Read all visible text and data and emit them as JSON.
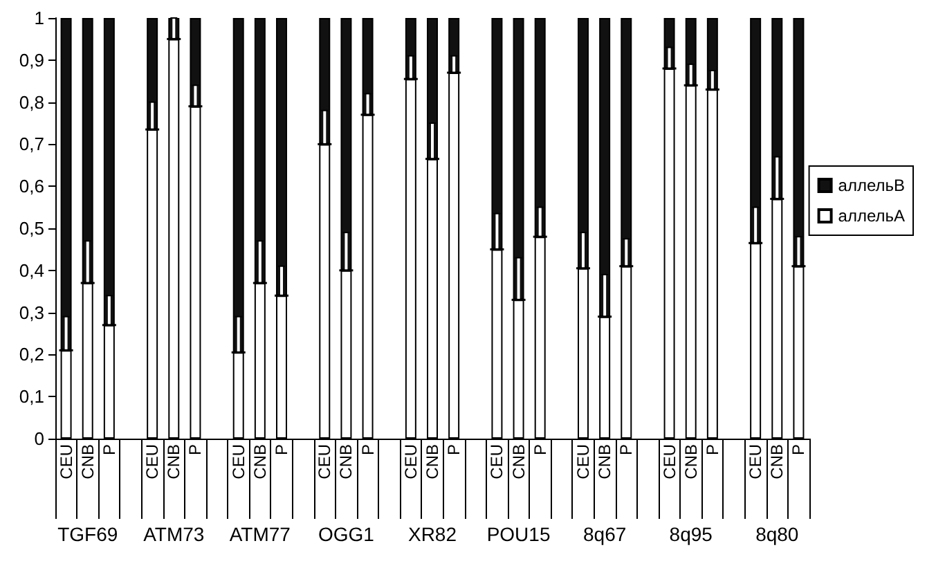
{
  "chart_data": {
    "type": "bar",
    "stacked": true,
    "categories": [
      "CEU",
      "CNB",
      "P",
      null,
      "CEU",
      "CNB",
      "P",
      null,
      "CEU",
      "CNB",
      "P",
      null,
      "CEU",
      "CNB",
      "P",
      null,
      "CEU",
      "CNB",
      "P",
      null,
      "CEU",
      "CNB",
      "P",
      null,
      "CEU",
      "CNB",
      "P",
      null,
      "CEU",
      "CNB",
      "P",
      null,
      "CEU",
      "CNB",
      "P"
    ],
    "series": [
      {
        "name": "аллельA",
        "color": "#ffffff",
        "values": [
          0.21,
          0.37,
          0.27,
          null,
          0.735,
          0.95,
          0.79,
          null,
          0.205,
          0.37,
          0.34,
          null,
          0.7,
          0.4,
          0.77,
          null,
          0.855,
          0.665,
          0.87,
          null,
          0.45,
          0.33,
          0.48,
          null,
          0.405,
          0.29,
          0.41,
          null,
          0.88,
          0.84,
          0.83,
          null,
          0.465,
          0.57,
          0.41
        ],
        "errors": [
          [
            0.21,
            0.29
          ],
          [
            0.37,
            0.47
          ],
          [
            0.27,
            0.34
          ],
          null,
          [
            0.735,
            0.8
          ],
          [
            0.95,
            1.0
          ],
          [
            0.79,
            0.84
          ],
          null,
          [
            0.205,
            0.29
          ],
          [
            0.37,
            0.47
          ],
          [
            0.34,
            0.41
          ],
          null,
          [
            0.7,
            0.78
          ],
          [
            0.4,
            0.49
          ],
          [
            0.77,
            0.82
          ],
          null,
          [
            0.855,
            0.91
          ],
          [
            0.665,
            0.75
          ],
          [
            0.87,
            0.91
          ],
          null,
          [
            0.45,
            0.535
          ],
          [
            0.33,
            0.43
          ],
          [
            0.48,
            0.55
          ],
          null,
          [
            0.405,
            0.49
          ],
          [
            0.29,
            0.39
          ],
          [
            0.41,
            0.475
          ],
          null,
          [
            0.88,
            0.93
          ],
          [
            0.84,
            0.89
          ],
          [
            0.83,
            0.875
          ],
          null,
          [
            0.465,
            0.55
          ],
          [
            0.57,
            0.67
          ],
          [
            0.41,
            0.48
          ]
        ]
      },
      {
        "name": "аллельB",
        "color": "#111111",
        "values": [
          0.79,
          0.63,
          0.73,
          null,
          0.265,
          0.05,
          0.21,
          null,
          0.795,
          0.63,
          0.66,
          null,
          0.3,
          0.6,
          0.23,
          null,
          0.145,
          0.335,
          0.13,
          null,
          0.55,
          0.67,
          0.52,
          null,
          0.595,
          0.71,
          0.59,
          null,
          0.12,
          0.16,
          0.17,
          null,
          0.535,
          0.43,
          0.59
        ]
      }
    ],
    "annotations": [
      "TGF69",
      "ATM73",
      "ATM77",
      "OGG1",
      "XR82",
      "POU15",
      "8q67",
      "8q95",
      "8q80"
    ],
    "ylim": [
      0,
      1
    ],
    "yticks": [
      {
        "value": 0,
        "label": "0"
      },
      {
        "value": 0.1,
        "label": "0,1"
      },
      {
        "value": 0.2,
        "label": "0,2"
      },
      {
        "value": 0.3,
        "label": "0,3"
      },
      {
        "value": 0.4,
        "label": "0,4"
      },
      {
        "value": 0.5,
        "label": "0,5"
      },
      {
        "value": 0.6,
        "label": "0,6"
      },
      {
        "value": 0.7,
        "label": "0,7"
      },
      {
        "value": 0.8,
        "label": "0,8"
      },
      {
        "value": 0.9,
        "label": "0,9"
      },
      {
        "value": 1,
        "label": "1"
      }
    ],
    "grid": false,
    "legend": "right"
  }
}
